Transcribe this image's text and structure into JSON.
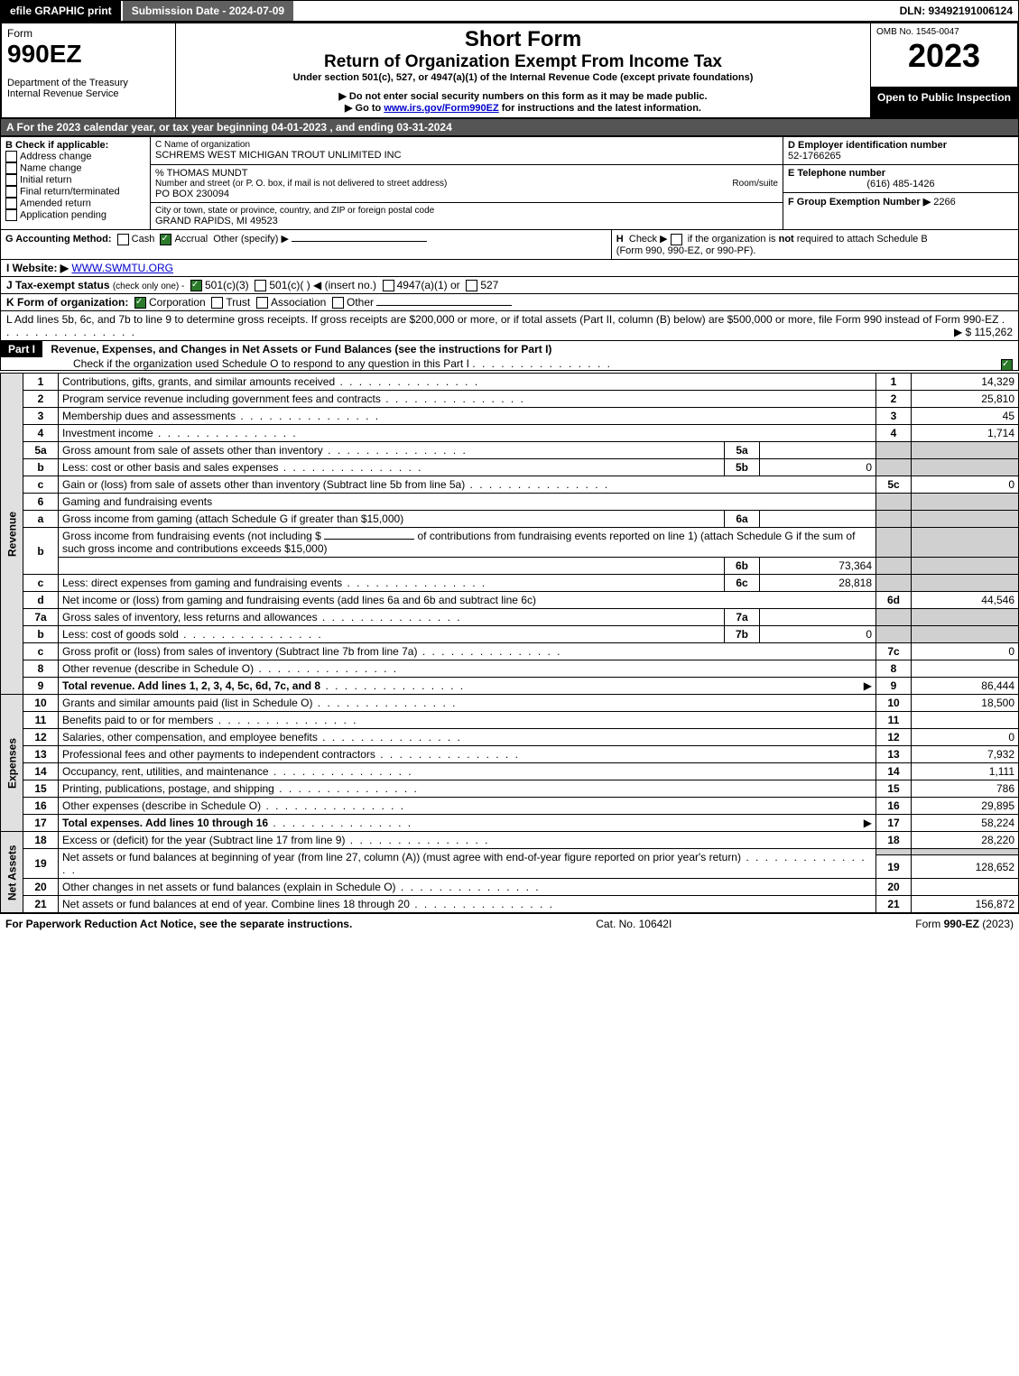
{
  "topbar": {
    "efile": "efile GRAPHIC print",
    "submission": "Submission Date - 2024-07-09",
    "dln": "DLN: 93492191006124"
  },
  "header": {
    "form_word": "Form",
    "form_number": "990EZ",
    "dept1": "Department of the Treasury",
    "dept2": "Internal Revenue Service",
    "short_form": "Short Form",
    "title": "Return of Organization Exempt From Income Tax",
    "subtitle": "Under section 501(c), 527, or 4947(a)(1) of the Internal Revenue Code (except private foundations)",
    "note1": "▶ Do not enter social security numbers on this form as it may be made public.",
    "note2_a": "▶ Go to ",
    "note2_link": "www.irs.gov/Form990EZ",
    "note2_b": " for instructions and the latest information.",
    "omb": "OMB No. 1545-0047",
    "year": "2023",
    "open": "Open to Public Inspection"
  },
  "lineA": "A  For the 2023 calendar year, or tax year beginning 04-01-2023 , and ending 03-31-2024",
  "boxB": {
    "title": "B  Check if applicable:",
    "items": [
      "Address change",
      "Name change",
      "Initial return",
      "Final return/terminated",
      "Amended return",
      "Application pending"
    ]
  },
  "boxC": {
    "label_org": "C Name of organization",
    "org": "SCHREMS WEST MICHIGAN TROUT UNLIMITED INC",
    "care_of": "% THOMAS MUNDT",
    "label_street": "Number and street (or P. O. box, if mail is not delivered to street address)",
    "room": "Room/suite",
    "street": "PO BOX 230094",
    "label_city": "City or town, state or province, country, and ZIP or foreign postal code",
    "city": "GRAND RAPIDS, MI  49523"
  },
  "boxD": {
    "label": "D Employer identification number",
    "value": "52-1766265"
  },
  "boxE": {
    "label": "E Telephone number",
    "value": "(616) 485-1426"
  },
  "boxF": {
    "label": "F Group Exemption Number  ▶",
    "value": "2266"
  },
  "lineG": {
    "label": "G Accounting Method:",
    "cash": "Cash",
    "accrual": "Accrual",
    "other": "Other (specify) ▶"
  },
  "lineH": {
    "label": "H",
    "text1": "Check ▶",
    "text2": "if the organization is ",
    "not": "not",
    "text3": " required to attach Schedule B",
    "text4": "(Form 990, 990-EZ, or 990-PF)."
  },
  "lineI": {
    "label": "I Website: ▶",
    "value": "WWW.SWMTU.ORG"
  },
  "lineJ": {
    "label": "J Tax-exempt status",
    "note": "(check only one) -",
    "a": "501(c)(3)",
    "b": "501(c)(  ) ◀ (insert no.)",
    "c": "4947(a)(1) or",
    "d": "527"
  },
  "lineK": {
    "label": "K Form of organization:",
    "a": "Corporation",
    "b": "Trust",
    "c": "Association",
    "d": "Other"
  },
  "lineL": {
    "text": "L Add lines 5b, 6c, and 7b to line 9 to determine gross receipts. If gross receipts are $200,000 or more, or if total assets (Part II, column (B) below) are $500,000 or more, file Form 990 instead of Form 990-EZ",
    "amount": "▶ $ 115,262"
  },
  "part1": {
    "label": "Part I",
    "title": "Revenue, Expenses, and Changes in Net Assets or Fund Balances (see the instructions for Part I)",
    "check": "Check if the organization used Schedule O to respond to any question in this Part I"
  },
  "revenue_label": "Revenue",
  "expenses_label": "Expenses",
  "netassets_label": "Net Assets",
  "rows": {
    "r1": {
      "n": "1",
      "t": "Contributions, gifts, grants, and similar amounts received",
      "box": "1",
      "v": "14,329"
    },
    "r2": {
      "n": "2",
      "t": "Program service revenue including government fees and contracts",
      "box": "2",
      "v": "25,810"
    },
    "r3": {
      "n": "3",
      "t": "Membership dues and assessments",
      "box": "3",
      "v": "45"
    },
    "r4": {
      "n": "4",
      "t": "Investment income",
      "box": "4",
      "v": "1,714"
    },
    "r5a": {
      "n": "5a",
      "t": "Gross amount from sale of assets other than inventory",
      "sb": "5a",
      "sv": ""
    },
    "r5b": {
      "n": "b",
      "t": "Less: cost or other basis and sales expenses",
      "sb": "5b",
      "sv": "0"
    },
    "r5c": {
      "n": "c",
      "t": "Gain or (loss) from sale of assets other than inventory (Subtract line 5b from line 5a)",
      "box": "5c",
      "v": "0"
    },
    "r6": {
      "n": "6",
      "t": "Gaming and fundraising events"
    },
    "r6a": {
      "n": "a",
      "t": "Gross income from gaming (attach Schedule G if greater than $15,000)",
      "sb": "6a",
      "sv": ""
    },
    "r6b": {
      "n": "b",
      "t1": "Gross income from fundraising events (not including $",
      "t2": "of contributions from fundraising events reported on line 1) (attach Schedule G if the sum of such gross income and contributions exceeds $15,000)",
      "sb": "6b",
      "sv": "73,364"
    },
    "r6c": {
      "n": "c",
      "t": "Less: direct expenses from gaming and fundraising events",
      "sb": "6c",
      "sv": "28,818"
    },
    "r6d": {
      "n": "d",
      "t": "Net income or (loss) from gaming and fundraising events (add lines 6a and 6b and subtract line 6c)",
      "box": "6d",
      "v": "44,546"
    },
    "r7a": {
      "n": "7a",
      "t": "Gross sales of inventory, less returns and allowances",
      "sb": "7a",
      "sv": ""
    },
    "r7b": {
      "n": "b",
      "t": "Less: cost of goods sold",
      "sb": "7b",
      "sv": "0"
    },
    "r7c": {
      "n": "c",
      "t": "Gross profit or (loss) from sales of inventory (Subtract line 7b from line 7a)",
      "box": "7c",
      "v": "0"
    },
    "r8": {
      "n": "8",
      "t": "Other revenue (describe in Schedule O)",
      "box": "8",
      "v": ""
    },
    "r9": {
      "n": "9",
      "t": "Total revenue. Add lines 1, 2, 3, 4, 5c, 6d, 7c, and 8",
      "arrow": "▶",
      "box": "9",
      "v": "86,444"
    },
    "r10": {
      "n": "10",
      "t": "Grants and similar amounts paid (list in Schedule O)",
      "box": "10",
      "v": "18,500"
    },
    "r11": {
      "n": "11",
      "t": "Benefits paid to or for members",
      "box": "11",
      "v": ""
    },
    "r12": {
      "n": "12",
      "t": "Salaries, other compensation, and employee benefits",
      "box": "12",
      "v": "0"
    },
    "r13": {
      "n": "13",
      "t": "Professional fees and other payments to independent contractors",
      "box": "13",
      "v": "7,932"
    },
    "r14": {
      "n": "14",
      "t": "Occupancy, rent, utilities, and maintenance",
      "box": "14",
      "v": "1,111"
    },
    "r15": {
      "n": "15",
      "t": "Printing, publications, postage, and shipping",
      "box": "15",
      "v": "786"
    },
    "r16": {
      "n": "16",
      "t": "Other expenses (describe in Schedule O)",
      "box": "16",
      "v": "29,895"
    },
    "r17": {
      "n": "17",
      "t": "Total expenses. Add lines 10 through 16",
      "arrow": "▶",
      "box": "17",
      "v": "58,224"
    },
    "r18": {
      "n": "18",
      "t": "Excess or (deficit) for the year (Subtract line 17 from line 9)",
      "box": "18",
      "v": "28,220"
    },
    "r19": {
      "n": "19",
      "t": "Net assets or fund balances at beginning of year (from line 27, column (A)) (must agree with end-of-year figure reported on prior year's return)",
      "box": "19",
      "v": "128,652"
    },
    "r20": {
      "n": "20",
      "t": "Other changes in net assets or fund balances (explain in Schedule O)",
      "box": "20",
      "v": ""
    },
    "r21": {
      "n": "21",
      "t": "Net assets or fund balances at end of year. Combine lines 18 through 20",
      "box": "21",
      "v": "156,872"
    }
  },
  "footer": {
    "left": "For Paperwork Reduction Act Notice, see the separate instructions.",
    "mid": "Cat. No. 10642I",
    "right": "Form 990-EZ (2023)"
  },
  "colors": {
    "black": "#000000",
    "darkgray": "#555555",
    "lightgray": "#d0d0d0",
    "green_check": "#2a7a2a",
    "link": "#0000cc"
  }
}
